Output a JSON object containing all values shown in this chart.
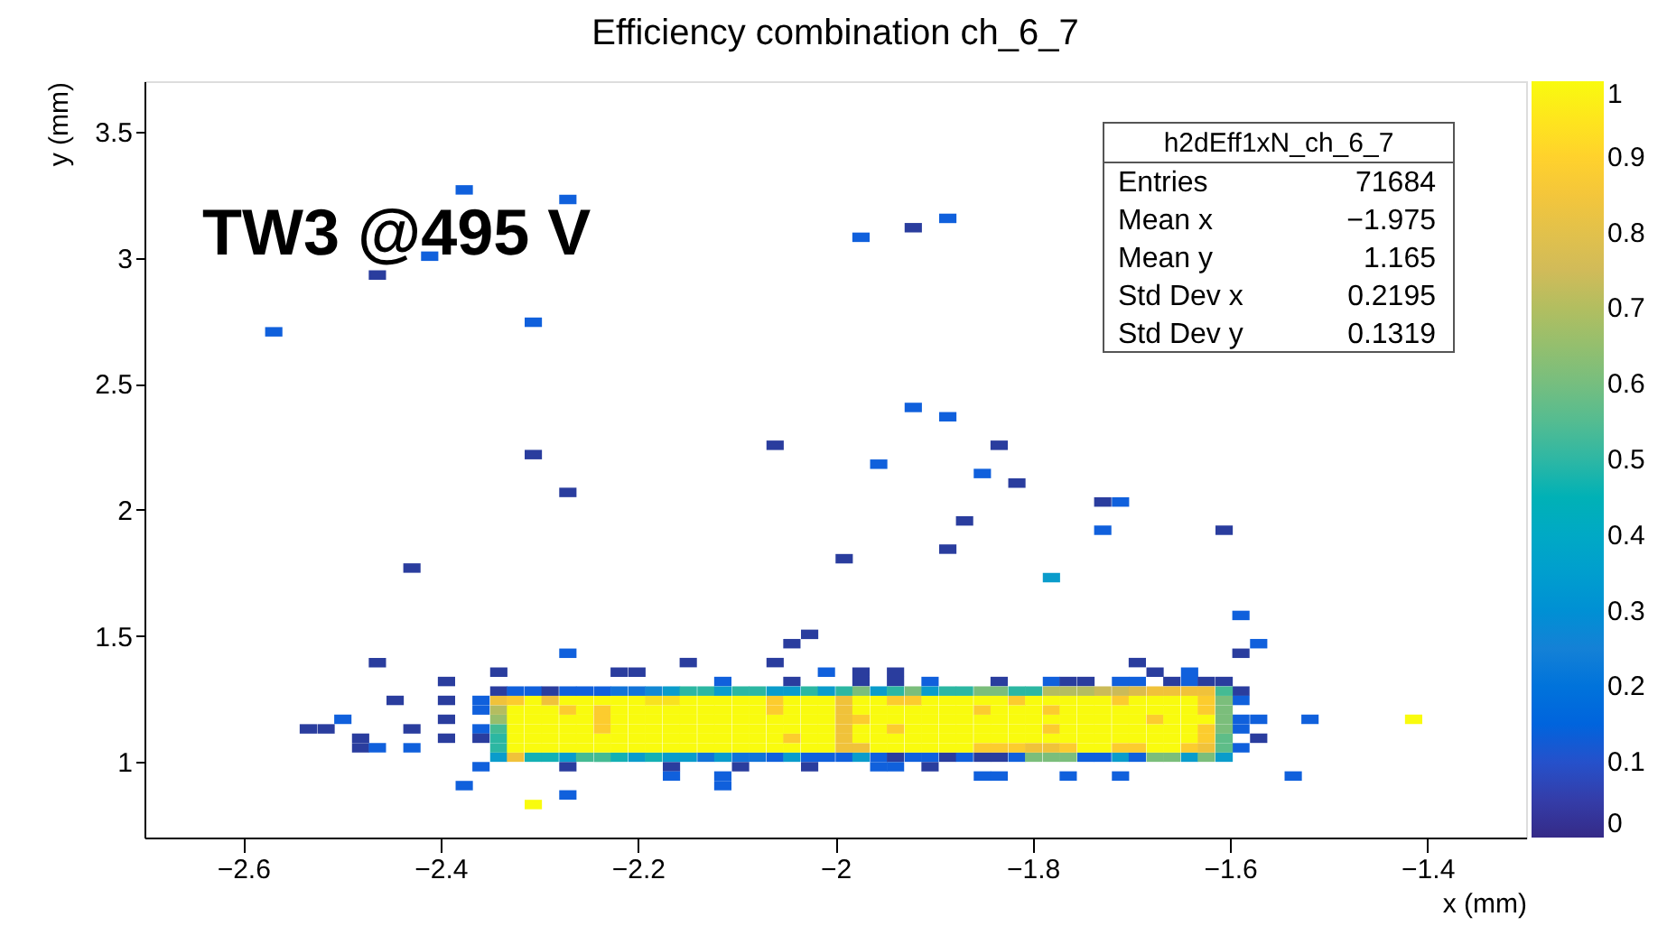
{
  "chart_data": {
    "type": "scatter",
    "title": "Efficiency combination ch_6_7",
    "xlabel": "x (mm)",
    "ylabel": "y (mm)",
    "annotations": [
      "TW3 @495 V",
      "h2dEff1xN_ch_6_7",
      "Entries",
      "71684",
      "Mean x",
      "−1.975",
      "Mean y",
      "1.165",
      "Std Dev x",
      "0.2195",
      "Std Dev y",
      "0.1319"
    ],
    "marker": "square",
    "xlim": [
      -2.7,
      -1.3
    ],
    "xticks": [
      -2.6,
      -2.4,
      -2.2,
      -2,
      -1.8,
      -1.6,
      -1.4
    ],
    "ylim": [
      0.7,
      3.7
    ],
    "yticks": [
      1,
      1.5,
      2,
      2.5,
      3,
      3.5
    ],
    "clim": [
      0,
      1
    ],
    "cticks": [
      0,
      0.1,
      0.2,
      0.3,
      0.4,
      0.5,
      0.6,
      0.7,
      0.8,
      0.9,
      1
    ],
    "x": [
      -2.341,
      -2.324,
      -2.306,
      -2.289,
      -2.271,
      -2.254,
      -2.236,
      -2.219,
      -2.201,
      -2.184,
      -2.166,
      -2.149,
      -2.131,
      -2.114,
      -2.096,
      -2.079,
      -2.061,
      -2.044,
      -2.026,
      -2.009,
      -1.991,
      -1.974,
      -1.956,
      -1.939,
      -1.921,
      -1.904,
      -1.886,
      -1.869,
      -1.851,
      -1.834,
      -1.816,
      -1.799,
      -1.781,
      -1.764,
      -1.746,
      -1.729,
      -1.711,
      -1.694,
      -1.676,
      -1.659,
      -1.641,
      -1.624,
      -1.606
    ],
    "series": [
      {
        "x": [
          -2.376,
          -2.271,
          -2.411,
          -2.464,
          -2.569,
          -2.306,
          -1.974,
          -1.921,
          -1.886,
          -1.921,
          -1.886,
          -2.061,
          -1.956,
          -2.306,
          -2.271,
          -1.869,
          -1.886,
          -1.991,
          -1.834,
          -1.851,
          -1.816,
          -1.729,
          -1.711,
          -1.729,
          -1.606,
          -1.781,
          -1.589,
          -2.429,
          -2.464,
          -2.271,
          -2.026,
          -2.044,
          -2.341,
          -2.219,
          -2.201,
          -2.149,
          -2.061,
          -2.114,
          -2.044,
          -2.009,
          -1.974,
          -1.974,
          -2.394,
          -2.446,
          -2.394,
          -2.359,
          -2.359,
          -2.499,
          -2.534,
          -2.516,
          -2.429,
          -2.394,
          -2.394,
          -2.359,
          -2.359,
          -2.481,
          -2.481,
          -2.464,
          -2.429,
          -2.359,
          -2.271,
          -2.376,
          -2.271,
          -2.306,
          -2.166,
          -2.166,
          -2.096,
          -2.114,
          -2.114,
          -2.026,
          -1.571,
          -1.589,
          -1.939,
          -1.939,
          -1.904,
          -1.834,
          -1.781,
          -1.764,
          -1.746,
          -1.694,
          -1.676,
          -1.711,
          -1.694,
          -1.659,
          -1.641,
          -1.641,
          -1.624,
          -1.606,
          -1.589,
          -1.589,
          -1.589,
          -1.571,
          -1.589,
          -1.571,
          -1.589,
          -1.519,
          -1.414,
          -1.536,
          -1.956,
          -1.939,
          -1.904,
          -1.851,
          -1.834,
          -1.764,
          -1.711
        ],
        "values": [
          3.269,
          3.231,
          3.006,
          2.931,
          2.706,
          2.744,
          3.081,
          3.119,
          3.156,
          2.406,
          2.369,
          2.256,
          2.181,
          2.219,
          2.069,
          1.956,
          1.844,
          1.806,
          2.256,
          2.144,
          2.106,
          2.031,
          2.031,
          1.919,
          1.919,
          1.731,
          1.581,
          1.769,
          1.394,
          1.431,
          1.506,
          1.469,
          1.356,
          1.356,
          1.356,
          1.394,
          1.394,
          1.319,
          1.319,
          1.356,
          1.319,
          1.356,
          1.319,
          1.244,
          1.244,
          1.206,
          1.244,
          1.169,
          1.131,
          1.131,
          1.131,
          1.169,
          1.094,
          1.131,
          1.094,
          1.094,
          1.056,
          1.056,
          1.056,
          0.981,
          0.981,
          0.906,
          0.869,
          0.831,
          0.981,
          0.944,
          0.981,
          0.944,
          0.906,
          0.981,
          1.469,
          1.431,
          1.319,
          1.356,
          1.319,
          1.319,
          1.319,
          1.319,
          1.319,
          1.394,
          1.356,
          1.319,
          1.319,
          1.319,
          1.319,
          1.356,
          1.319,
          1.319,
          1.281,
          1.244,
          1.169,
          1.169,
          1.131,
          1.094,
          1.056,
          1.169,
          1.169,
          0.944,
          0.981,
          0.981,
          0.981,
          0.944,
          0.944,
          0.944,
          0.944
        ],
        "colors": [
          "#1060dc",
          "#1060dc",
          "#1060dc",
          "#2a3d9e",
          "#1060dc",
          "#1060dc",
          "#1060dc",
          "#2a3d9e",
          "#1060dc",
          "#1060dc",
          "#1060dc",
          "#2a3d9e",
          "#1060dc",
          "#2a3d9e",
          "#2a3d9e",
          "#2a3d9e",
          "#2a3d9e",
          "#2a3d9e",
          "#2a3d9e",
          "#1060dc",
          "#2a3d9e",
          "#2a3d9e",
          "#1060dc",
          "#1060dc",
          "#2a3d9e",
          "#0a9ccb",
          "#1060dc",
          "#2a3d9e",
          "#2a3d9e",
          "#1060dc",
          "#2a3d9e",
          "#2a3d9e",
          "#2a3d9e",
          "#2a3d9e",
          "#2a3d9e",
          "#2a3d9e",
          "#2a3d9e",
          "#1060dc",
          "#2a3d9e",
          "#1060dc",
          "#2a3d9e",
          "#2a3d9e",
          "#2a3d9e",
          "#2a3d9e",
          "#2a3d9e",
          "#1060dc",
          "#1060dc",
          "#1060dc",
          "#2a3d9e",
          "#2a3d9e",
          "#2a3d9e",
          "#2a3d9e",
          "#2a3d9e",
          "#1060dc",
          "#2a3d9e",
          "#2a3d9e",
          "#2a3d9e",
          "#1060dc",
          "#1060dc",
          "#1060dc",
          "#2a3d9e",
          "#1060dc",
          "#1060dc",
          "#f9fb0e",
          "#2a3d9e",
          "#1060dc",
          "#2a3d9e",
          "#1060dc",
          "#1060dc",
          "#2a3d9e",
          "#1060dc",
          "#2a3d9e",
          "#2a3d9e",
          "#2a3d9e",
          "#1060dc",
          "#2a3d9e",
          "#1060dc",
          "#2a3d9e",
          "#2a3d9e",
          "#2a3d9e",
          "#2a3d9e",
          "#1060dc",
          "#1060dc",
          "#2a3d9e",
          "#1060dc",
          "#1060dc",
          "#2a3d9e",
          "#2a3d9e",
          "#2a3d9e",
          "#1060dc",
          "#1060dc",
          "#1060dc",
          "#1060dc",
          "#2a3d9e",
          "#1060dc",
          "#1060dc",
          "#f9fb0e",
          "#1060dc",
          "#1060dc",
          "#1060dc",
          "#2a3d9e",
          "#1060dc",
          "#1060dc",
          "#1060dc",
          "#1060dc"
        ]
      },
      {
        "values": [
          1.019,
          1.019,
          1.019,
          1.019,
          1.019,
          1.019,
          1.019,
          1.019,
          1.019,
          1.019,
          1.019,
          1.019,
          1.019,
          1.019,
          1.019,
          1.019,
          1.019,
          1.019,
          1.019,
          1.019,
          1.019,
          1.019,
          1.019,
          1.019,
          1.019,
          1.019,
          1.019,
          1.019,
          1.019,
          1.019,
          1.019,
          1.019,
          1.019,
          1.019,
          1.019,
          1.019,
          1.019,
          1.019,
          1.019,
          1.019,
          1.019,
          1.019,
          1.019
        ],
        "colors": [
          "#0a9ccb",
          "#f0c23a",
          "#14b0b4",
          "#14b0b4",
          "#0a9ccb",
          "#45bb93",
          "#45bb93",
          "#14b0b4",
          "#0a9ccb",
          "#14b0b4",
          "#0a9ccb",
          "#0a9ccb",
          "#1273d8",
          "#0a9ccb",
          "#1273d8",
          "#1273d8",
          "#1060dc",
          "#0a9ccb",
          "#1060dc",
          "#1060dc",
          "#1060dc",
          "#0a9ccb",
          "#1060dc",
          "#2a3d9e",
          "#1060dc",
          "#1060dc",
          "#2a3d9e",
          "#1060dc",
          "#2a3d9e",
          "#2a3d9e",
          "#1060dc",
          "#7bbe7b",
          "#7bbe7b",
          "#7bbe7b",
          "#1060dc",
          "#1060dc",
          "#0a9ccb",
          "#1060dc",
          "#7bbe7b",
          "#7bbe7b",
          "#0a9ccb",
          "#7bbe7b",
          "#0a9ccb"
        ]
      },
      {
        "values": [
          1.056,
          1.056,
          1.056,
          1.056,
          1.056,
          1.056,
          1.056,
          1.056,
          1.056,
          1.056,
          1.056,
          1.056,
          1.056,
          1.056,
          1.056,
          1.056,
          1.056,
          1.056,
          1.056,
          1.056,
          1.056,
          1.056,
          1.056,
          1.056,
          1.056,
          1.056,
          1.056,
          1.056,
          1.056,
          1.056,
          1.056,
          1.056,
          1.056,
          1.056,
          1.056,
          1.056,
          1.056,
          1.056,
          1.056,
          1.056,
          1.056,
          1.056,
          1.056
        ],
        "colors": [
          "#2cb7a2",
          "#f9fb0e",
          "#f9fb0e",
          "#f9fb0e",
          "#f9fb0e",
          "#f9fb0e",
          "#f9fb0e",
          "#f9fb0e",
          "#f9fb0e",
          "#f9fb0e",
          "#f9fb0e",
          "#f9fb0e",
          "#f9fb0e",
          "#f9fb0e",
          "#f9fb0e",
          "#f9fb0e",
          "#f9fb0e",
          "#f9fb0e",
          "#f9fb0e",
          "#f9fb0e",
          "#f0c23a",
          "#f0c23a",
          "#f9fb0e",
          "#f9fb0e",
          "#f9fb0e",
          "#f9fb0e",
          "#f9fb0e",
          "#f9fb0e",
          "#fccc2e",
          "#fccc2e",
          "#fccc2e",
          "#f0c23a",
          "#f0c23a",
          "#fccc2e",
          "#f9fb0e",
          "#f9fb0e",
          "#fccc2e",
          "#fccc2e",
          "#f9fb0e",
          "#f9fb0e",
          "#fccc2e",
          "#f0c23a",
          "#5ebd88"
        ]
      },
      {
        "values": [
          1.094,
          1.094,
          1.094,
          1.094,
          1.094,
          1.094,
          1.094,
          1.094,
          1.094,
          1.094,
          1.094,
          1.094,
          1.094,
          1.094,
          1.094,
          1.094,
          1.094,
          1.094,
          1.094,
          1.094,
          1.094,
          1.094,
          1.094,
          1.094,
          1.094,
          1.094,
          1.094,
          1.094,
          1.094,
          1.094,
          1.094,
          1.094,
          1.094,
          1.094,
          1.094,
          1.094,
          1.094,
          1.094,
          1.094,
          1.094,
          1.094,
          1.094,
          1.094
        ],
        "colors": [
          "#2cb7a2",
          "#f9fb0e",
          "#f9fb0e",
          "#f9fb0e",
          "#f9fb0e",
          "#f9fb0e",
          "#f9fb0e",
          "#f9fb0e",
          "#f9fb0e",
          "#f9fb0e",
          "#f9fb0e",
          "#f9fb0e",
          "#f9fb0e",
          "#f9fb0e",
          "#f9fb0e",
          "#f9fb0e",
          "#f9fb0e",
          "#fccc2e",
          "#f9fb0e",
          "#f9fb0e",
          "#f0c23a",
          "#f9fb0e",
          "#f9fb0e",
          "#f9fb0e",
          "#f9fb0e",
          "#f9fb0e",
          "#f9fb0e",
          "#f9fb0e",
          "#f9fb0e",
          "#f9fb0e",
          "#f9fb0e",
          "#f9fb0e",
          "#f9fb0e",
          "#f9fb0e",
          "#f9fb0e",
          "#f9fb0e",
          "#f9fb0e",
          "#f9fb0e",
          "#f9fb0e",
          "#f9fb0e",
          "#f9fb0e",
          "#fccc2e",
          "#5ebd88"
        ]
      },
      {
        "values": [
          1.131,
          1.131,
          1.131,
          1.131,
          1.131,
          1.131,
          1.131,
          1.131,
          1.131,
          1.131,
          1.131,
          1.131,
          1.131,
          1.131,
          1.131,
          1.131,
          1.131,
          1.131,
          1.131,
          1.131,
          1.131,
          1.131,
          1.131,
          1.131,
          1.131,
          1.131,
          1.131,
          1.131,
          1.131,
          1.131,
          1.131,
          1.131,
          1.131,
          1.131,
          1.131,
          1.131,
          1.131,
          1.131,
          1.131,
          1.131,
          1.131,
          1.131,
          1.131
        ],
        "colors": [
          "#45bb93",
          "#f9fb0e",
          "#f9fb0e",
          "#f9fb0e",
          "#f9fb0e",
          "#f9fb0e",
          "#fccc2e",
          "#f9fb0e",
          "#f9fb0e",
          "#f9fb0e",
          "#f9fb0e",
          "#f9fb0e",
          "#f9fb0e",
          "#f9fb0e",
          "#f9fb0e",
          "#f9fb0e",
          "#f9fb0e",
          "#f9fb0e",
          "#f9fb0e",
          "#f9fb0e",
          "#f0c23a",
          "#f9fb0e",
          "#f9fb0e",
          "#fccc2e",
          "#f9fb0e",
          "#f9fb0e",
          "#f9fb0e",
          "#f9fb0e",
          "#f9fb0e",
          "#f9fb0e",
          "#f9fb0e",
          "#f9fb0e",
          "#fccc2e",
          "#f9fb0e",
          "#f9fb0e",
          "#f9fb0e",
          "#f9fb0e",
          "#f9fb0e",
          "#f9fb0e",
          "#f9fb0e",
          "#f9fb0e",
          "#fccc2e",
          "#7bbe7b"
        ]
      },
      {
        "values": [
          1.169,
          1.169,
          1.169,
          1.169,
          1.169,
          1.169,
          1.169,
          1.169,
          1.169,
          1.169,
          1.169,
          1.169,
          1.169,
          1.169,
          1.169,
          1.169,
          1.169,
          1.169,
          1.169,
          1.169,
          1.169,
          1.169,
          1.169,
          1.169,
          1.169,
          1.169,
          1.169,
          1.169,
          1.169,
          1.169,
          1.169,
          1.169,
          1.169,
          1.169,
          1.169,
          1.169,
          1.169,
          1.169,
          1.169,
          1.169,
          1.169,
          1.169,
          1.169
        ],
        "colors": [
          "#98be6c",
          "#f9fb0e",
          "#f9fb0e",
          "#f9fb0e",
          "#f9fb0e",
          "#f9fb0e",
          "#fccc2e",
          "#f9fb0e",
          "#f9fb0e",
          "#f9fb0e",
          "#f9fb0e",
          "#f9fb0e",
          "#f9fb0e",
          "#f9fb0e",
          "#f9fb0e",
          "#f9fb0e",
          "#f9fb0e",
          "#f9fb0e",
          "#f9fb0e",
          "#f9fb0e",
          "#f0c23a",
          "#fccc2e",
          "#f9fb0e",
          "#f9fb0e",
          "#f9fb0e",
          "#f9fb0e",
          "#f9fb0e",
          "#f9fb0e",
          "#f9fb0e",
          "#f9fb0e",
          "#f9fb0e",
          "#f9fb0e",
          "#f9fb0e",
          "#f9fb0e",
          "#f9fb0e",
          "#f9fb0e",
          "#f9fb0e",
          "#f9fb0e",
          "#fccc2e",
          "#f9fb0e",
          "#f9fb0e",
          "#f9fb0e",
          "#7bbe7b"
        ]
      },
      {
        "values": [
          1.206,
          1.206,
          1.206,
          1.206,
          1.206,
          1.206,
          1.206,
          1.206,
          1.206,
          1.206,
          1.206,
          1.206,
          1.206,
          1.206,
          1.206,
          1.206,
          1.206,
          1.206,
          1.206,
          1.206,
          1.206,
          1.206,
          1.206,
          1.206,
          1.206,
          1.206,
          1.206,
          1.206,
          1.206,
          1.206,
          1.206,
          1.206,
          1.206,
          1.206,
          1.206,
          1.206,
          1.206,
          1.206,
          1.206,
          1.206,
          1.206,
          1.206,
          1.206
        ],
        "colors": [
          "#b4bd60",
          "#f9fb0e",
          "#f9fb0e",
          "#f9fb0e",
          "#fccc2e",
          "#f9fb0e",
          "#fccc2e",
          "#f9fb0e",
          "#f9fb0e",
          "#f9fb0e",
          "#f9fb0e",
          "#f9fb0e",
          "#f9fb0e",
          "#f9fb0e",
          "#f9fb0e",
          "#f9fb0e",
          "#fccc2e",
          "#f9fb0e",
          "#f9fb0e",
          "#f9fb0e",
          "#f0c23a",
          "#f9fb0e",
          "#f9fb0e",
          "#f9fb0e",
          "#f9fb0e",
          "#f9fb0e",
          "#f9fb0e",
          "#f9fb0e",
          "#fccc2e",
          "#f9fb0e",
          "#f9fb0e",
          "#f9fb0e",
          "#fccc2e",
          "#f9fb0e",
          "#f9fb0e",
          "#f9fb0e",
          "#f9fb0e",
          "#f9fb0e",
          "#f9fb0e",
          "#f9fb0e",
          "#f9fb0e",
          "#fccc2e",
          "#7bbe7b"
        ]
      },
      {
        "values": [
          1.244,
          1.244,
          1.244,
          1.244,
          1.244,
          1.244,
          1.244,
          1.244,
          1.244,
          1.244,
          1.244,
          1.244,
          1.244,
          1.244,
          1.244,
          1.244,
          1.244,
          1.244,
          1.244,
          1.244,
          1.244,
          1.244,
          1.244,
          1.244,
          1.244,
          1.244,
          1.244,
          1.244,
          1.244,
          1.244,
          1.244,
          1.244,
          1.244,
          1.244,
          1.244,
          1.244,
          1.244,
          1.244,
          1.244,
          1.244,
          1.244,
          1.244,
          1.244
        ],
        "colors": [
          "#f0c23a",
          "#fccc2e",
          "#f9fb0e",
          "#f0c23a",
          "#f9fb0e",
          "#f9fb0e",
          "#f9fb0e",
          "#f9fb0e",
          "#f9fb0e",
          "#f8e21f",
          "#f8e21f",
          "#f9fb0e",
          "#f9fb0e",
          "#f9fb0e",
          "#f9fb0e",
          "#f9fb0e",
          "#fccc2e",
          "#f9fb0e",
          "#f9fb0e",
          "#f9fb0e",
          "#f0c23a",
          "#f9fb0e",
          "#f9fb0e",
          "#fccc2e",
          "#fccc2e",
          "#f9fb0e",
          "#f9fb0e",
          "#f9fb0e",
          "#f9fb0e",
          "#f9fb0e",
          "#fccc2e",
          "#f9fb0e",
          "#f9fb0e",
          "#f9fb0e",
          "#f9fb0e",
          "#f9fb0e",
          "#fccc2e",
          "#f9fb0e",
          "#f9fb0e",
          "#f9fb0e",
          "#f9fb0e",
          "#fccc2e",
          "#7bbe7b"
        ]
      },
      {
        "values": [
          1.281,
          1.281,
          1.281,
          1.281,
          1.281,
          1.281,
          1.281,
          1.281,
          1.281,
          1.281,
          1.281,
          1.281,
          1.281,
          1.281,
          1.281,
          1.281,
          1.281,
          1.281,
          1.281,
          1.281,
          1.281,
          1.281,
          1.281,
          1.281,
          1.281,
          1.281,
          1.281,
          1.281,
          1.281,
          1.281,
          1.281,
          1.281,
          1.281,
          1.281,
          1.281,
          1.281,
          1.281,
          1.281,
          1.281,
          1.281,
          1.281,
          1.281,
          1.281
        ],
        "colors": [
          "#2a3d9e",
          "#1060dc",
          "#1060dc",
          "#2a3d9e",
          "#1060dc",
          "#1060dc",
          "#1060dc",
          "#1273d8",
          "#1273d8",
          "#1388d4",
          "#0a9ccb",
          "#2cb7a2",
          "#2cb7a2",
          "#0a9ccb",
          "#2cb7a2",
          "#2cb7a2",
          "#0a9ccb",
          "#0a9ccb",
          "#2cb7a2",
          "#0a9ccb",
          "#2cb7a2",
          "#7bbe7b",
          "#0a9ccb",
          "#2cb7a2",
          "#7bbe7b",
          "#0a9ccb",
          "#2cb7a2",
          "#2cb7a2",
          "#7bbe7b",
          "#7bbe7b",
          "#2cb7a2",
          "#2cb7a2",
          "#b4bd60",
          "#b4bd60",
          "#b4bd60",
          "#cbbb58",
          "#cbbb58",
          "#dcbc4c",
          "#f0c23a",
          "#f0c23a",
          "#f0c23a",
          "#f0c23a",
          "#45bb93"
        ]
      }
    ]
  }
}
